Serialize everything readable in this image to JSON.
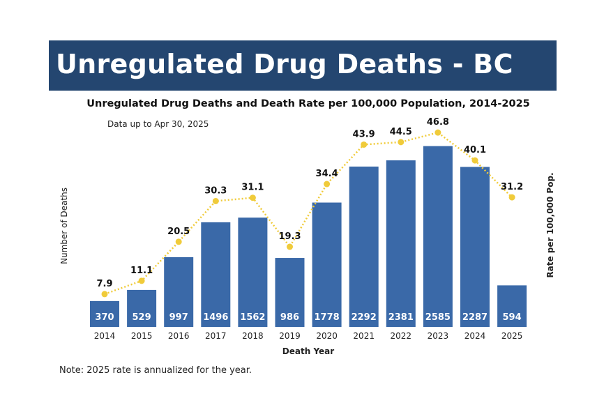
{
  "header": {
    "title": "Unregulated Drug Deaths - BC",
    "bg_color": "#244670"
  },
  "note": "Note: 2025 rate is annualized for the year.",
  "chart_data": {
    "type": "bar+line",
    "title": "Unregulated Drug Deaths and Death Rate per 100,000 Population, 2014-2025",
    "subtitle": "Data up to Apr 30, 2025",
    "xlabel": "Death Year",
    "ylabel": "Number of Deaths",
    "ylabel_right": "Rate per 100,000 Pop.",
    "categories": [
      "2014",
      "2015",
      "2016",
      "2017",
      "2018",
      "2019",
      "2020",
      "2021",
      "2022",
      "2023",
      "2024",
      "2025"
    ],
    "series": [
      {
        "type": "bar",
        "axis": "left",
        "color": "#3a69a8",
        "values": [
          370,
          529,
          997,
          1496,
          1562,
          986,
          1778,
          2292,
          2381,
          2585,
          2287,
          594
        ]
      },
      {
        "type": "line",
        "axis": "right",
        "style": "dotted",
        "color": "#f0cb3a",
        "values": [
          7.9,
          11.1,
          20.5,
          30.3,
          31.1,
          19.3,
          34.4,
          43.9,
          44.5,
          46.8,
          40.1,
          31.2
        ]
      }
    ],
    "ylim": [
      0,
      2820
    ],
    "ylim_right": [
      0,
      47.5
    ],
    "grid": false,
    "axes_ticks_shown": false
  }
}
